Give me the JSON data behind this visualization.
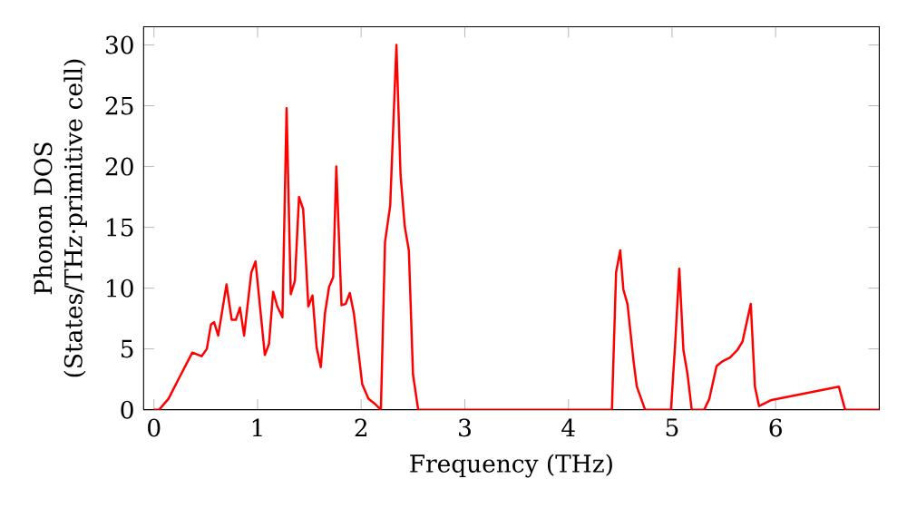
{
  "chart_data": {
    "type": "line",
    "xlabel": "Frequency (THz)",
    "ylabel": "Phonon DOS (States/THz·primitive cell)",
    "xlim": [
      -0.1,
      7.0
    ],
    "ylim": [
      0,
      31.5
    ],
    "xticks": [
      0,
      1,
      2,
      3,
      4,
      5,
      6
    ],
    "yticks": [
      0,
      5,
      10,
      15,
      20,
      25,
      30
    ],
    "marker": "none",
    "line_style": "solid",
    "series": [
      {
        "color": "#ff0000",
        "x": [
          0,
          0.05,
          0.14,
          0.23,
          0.37,
          0.46,
          0.51,
          0.55,
          0.58,
          0.62,
          0.7,
          0.75,
          0.79,
          0.83,
          0.87,
          0.94,
          0.98,
          1.07,
          1.11,
          1.15,
          1.19,
          1.24,
          1.28,
          1.32,
          1.36,
          1.4,
          1.44,
          1.49,
          1.53,
          1.57,
          1.61,
          1.65,
          1.69,
          1.73,
          1.76,
          1.81,
          1.85,
          1.89,
          1.93,
          2.01,
          2.07,
          2.13,
          2.19,
          2.23,
          2.28,
          2.34,
          2.38,
          2.42,
          2.46,
          2.5,
          2.55,
          4.42,
          4.46,
          4.5,
          4.53,
          4.57,
          4.63,
          4.66,
          4.74,
          4.99,
          5.03,
          5.07,
          5.11,
          5.15,
          5.19,
          5.31,
          5.36,
          5.43,
          5.49,
          5.56,
          5.63,
          5.68,
          5.76,
          5.8,
          5.84,
          5.96,
          6.61,
          6.67,
          7.0
        ],
        "values": [
          0,
          0,
          0.9,
          2.4,
          4.7,
          4.4,
          5.0,
          7.0,
          7.2,
          6.1,
          10.3,
          7.4,
          7.4,
          8.4,
          6.1,
          11.3,
          12.2,
          4.5,
          5.4,
          9.7,
          8.5,
          7.6,
          24.8,
          9.5,
          10.6,
          17.5,
          16.5,
          8.5,
          9.4,
          5.1,
          3.5,
          7.9,
          10.1,
          10.9,
          20.0,
          8.6,
          8.7,
          9.6,
          7.9,
          2.1,
          0.9,
          0.5,
          0,
          13.8,
          16.8,
          30.0,
          19.3,
          15.1,
          13.1,
          2.9,
          0,
          0,
          11.3,
          13.1,
          9.9,
          8.7,
          3.9,
          1.9,
          0,
          0,
          5.4,
          11.6,
          4.9,
          2.9,
          0,
          0,
          0.9,
          3.6,
          4.0,
          4.3,
          4.9,
          5.6,
          8.7,
          1.9,
          0.3,
          0.8,
          1.9,
          0,
          0
        ]
      }
    ]
  }
}
